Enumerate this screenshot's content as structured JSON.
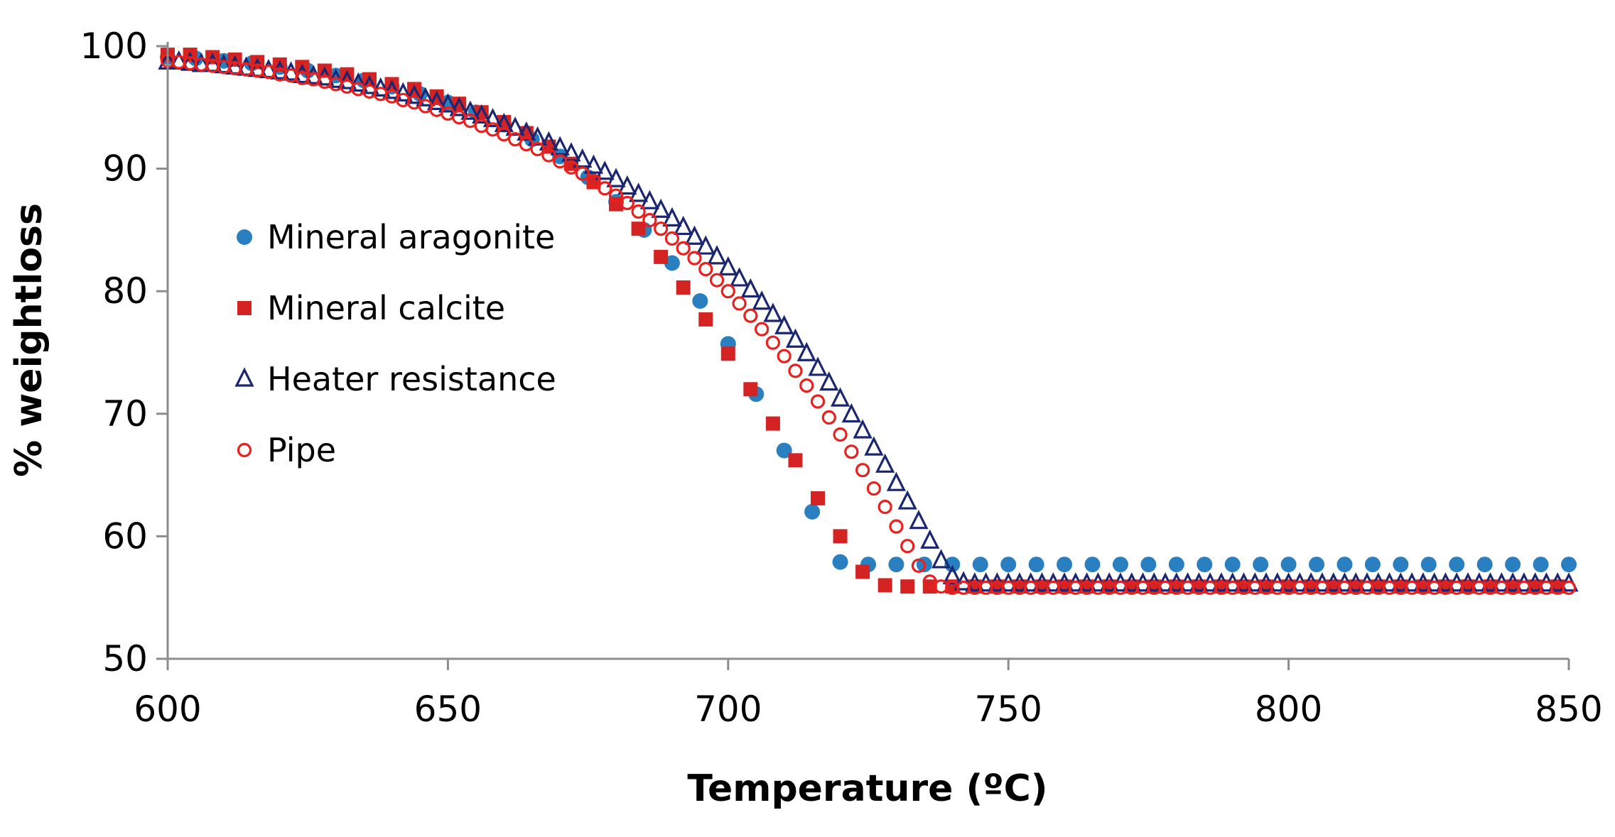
{
  "chart_data": {
    "type": "scatter",
    "title": "",
    "xlabel": "Temperature (ºC)",
    "ylabel": "% weightloss",
    "xlim": [
      600,
      850
    ],
    "ylim": [
      50,
      100
    ],
    "xticks": [
      "600",
      "650",
      "700",
      "750",
      "800",
      "850"
    ],
    "yticks": [
      "50",
      "60",
      "70",
      "80",
      "90",
      "100"
    ],
    "legend_position": "left-center",
    "series": [
      {
        "name": "Mineral aragonite",
        "marker": "filled-circle",
        "color": "#2a7fc1",
        "x_start": 600,
        "x_step": 5,
        "values": [
          99.1,
          99.0,
          98.8,
          98.6,
          98.3,
          98.0,
          97.6,
          97.2,
          96.7,
          96.1,
          95.4,
          94.6,
          93.6,
          92.4,
          91.0,
          89.3,
          87.3,
          85.0,
          82.3,
          79.2,
          75.7,
          71.6,
          67.0,
          62.0,
          57.9,
          57.7,
          57.7,
          57.7,
          57.7,
          57.7,
          57.7,
          57.7,
          57.7,
          57.7,
          57.7,
          57.7,
          57.7,
          57.7,
          57.7,
          57.7,
          57.7,
          57.7,
          57.7,
          57.7,
          57.7,
          57.7,
          57.7,
          57.7,
          57.7,
          57.7,
          57.7
        ]
      },
      {
        "name": "Mineral calcite",
        "marker": "filled-square",
        "color": "#d42323",
        "x_start": 600,
        "x_step": 4,
        "values": [
          99.3,
          99.3,
          99.1,
          98.9,
          98.7,
          98.5,
          98.3,
          98.0,
          97.7,
          97.3,
          96.9,
          96.5,
          95.9,
          95.3,
          94.6,
          93.8,
          92.9,
          91.8,
          90.4,
          88.9,
          87.1,
          85.1,
          82.8,
          80.3,
          77.7,
          74.9,
          72.0,
          69.2,
          66.2,
          63.1,
          60.0,
          57.1,
          56.0,
          55.9,
          55.9,
          55.9,
          55.9,
          55.9,
          55.9,
          55.9,
          55.9,
          55.9,
          55.9,
          55.9,
          55.9,
          55.9,
          55.9,
          55.9,
          55.9,
          55.9,
          55.9,
          55.9,
          55.9,
          55.9,
          55.9,
          55.9,
          55.9,
          55.9,
          55.9,
          55.9,
          55.9,
          55.9,
          55.9
        ]
      },
      {
        "name": "Heater resistance",
        "marker": "open-triangle",
        "color": "#1a2670",
        "x_start": 600,
        "x_step": 2,
        "values": [
          98.7,
          98.7,
          98.6,
          98.5,
          98.5,
          98.4,
          98.3,
          98.2,
          98.1,
          98.0,
          97.9,
          97.8,
          97.6,
          97.5,
          97.4,
          97.2,
          97.1,
          96.9,
          96.7,
          96.5,
          96.3,
          96.1,
          95.9,
          95.7,
          95.4,
          95.2,
          94.9,
          94.6,
          94.3,
          94.0,
          93.6,
          93.3,
          92.9,
          92.5,
          92.1,
          91.7,
          91.2,
          90.7,
          90.2,
          89.7,
          89.1,
          88.5,
          87.9,
          87.3,
          86.6,
          85.9,
          85.2,
          84.4,
          83.6,
          82.8,
          81.9,
          81.0,
          80.1,
          79.1,
          78.1,
          77.1,
          76.0,
          74.9,
          73.7,
          72.5,
          71.2,
          69.9,
          68.6,
          67.2,
          65.8,
          64.3,
          62.8,
          61.2,
          59.6,
          58.0,
          56.7,
          56.2,
          56.1,
          56.1,
          56.1,
          56.1,
          56.1,
          56.1,
          56.1,
          56.1,
          56.1,
          56.1,
          56.1,
          56.1,
          56.1,
          56.1,
          56.1,
          56.1,
          56.1,
          56.1,
          56.1,
          56.1,
          56.1,
          56.1,
          56.1,
          56.1,
          56.1,
          56.1,
          56.1,
          56.1,
          56.1,
          56.1,
          56.1,
          56.1,
          56.1,
          56.1,
          56.1,
          56.1,
          56.1,
          56.1,
          56.1,
          56.1,
          56.1,
          56.1,
          56.1,
          56.1,
          56.1,
          56.1,
          56.1,
          56.1,
          56.1,
          56.1,
          56.1,
          56.1,
          56.1,
          56.1
        ]
      },
      {
        "name": "Pipe",
        "marker": "open-circle",
        "color": "#e8201e",
        "x_start": 600,
        "x_step": 2,
        "values": [
          98.8,
          98.7,
          98.6,
          98.5,
          98.4,
          98.3,
          98.2,
          98.1,
          98.0,
          97.9,
          97.7,
          97.6,
          97.4,
          97.3,
          97.1,
          96.9,
          96.7,
          96.5,
          96.3,
          96.1,
          95.9,
          95.6,
          95.4,
          95.1,
          94.8,
          94.5,
          94.2,
          93.9,
          93.5,
          93.2,
          92.8,
          92.4,
          92.0,
          91.6,
          91.1,
          90.6,
          90.1,
          89.6,
          89.0,
          88.4,
          87.8,
          87.2,
          86.5,
          85.8,
          85.1,
          84.3,
          83.5,
          82.7,
          81.8,
          80.9,
          80.0,
          79.0,
          78.0,
          76.9,
          75.8,
          74.7,
          73.5,
          72.3,
          71.0,
          69.7,
          68.3,
          66.9,
          65.4,
          63.9,
          62.4,
          60.8,
          59.2,
          57.6,
          56.3,
          55.9,
          55.8,
          55.8,
          55.8,
          55.8,
          55.8,
          55.8,
          55.8,
          55.8,
          55.8,
          55.8,
          55.8,
          55.8,
          55.8,
          55.8,
          55.8,
          55.8,
          55.8,
          55.8,
          55.8,
          55.8,
          55.8,
          55.8,
          55.8,
          55.8,
          55.8,
          55.8,
          55.8,
          55.8,
          55.8,
          55.8,
          55.8,
          55.8,
          55.8,
          55.8,
          55.8,
          55.8,
          55.8,
          55.8,
          55.8,
          55.8,
          55.8,
          55.8,
          55.8,
          55.8,
          55.8,
          55.8,
          55.8,
          55.8,
          55.8,
          55.8,
          55.8,
          55.8,
          55.8,
          55.8,
          55.8,
          55.8
        ]
      }
    ]
  }
}
